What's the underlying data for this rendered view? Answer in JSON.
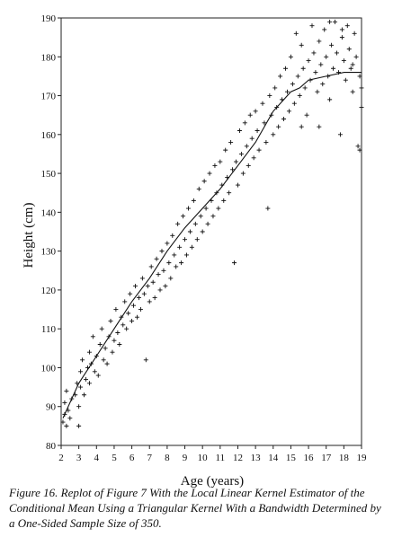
{
  "chart_data": {
    "type": "scatter",
    "title": "",
    "xlabel": "Age (years)",
    "ylabel": "Height (cm)",
    "xlim": [
      2,
      19
    ],
    "ylim": [
      80,
      190
    ],
    "x_ticks": [
      "2",
      "3",
      "4",
      "5",
      "6",
      "7",
      "8",
      "9",
      "10",
      "11",
      "12",
      "13",
      "14",
      "15",
      "16",
      "17",
      "18",
      "19"
    ],
    "y_ticks": [
      "80",
      "90",
      "100",
      "110",
      "120",
      "130",
      "140",
      "150",
      "160",
      "170",
      "180",
      "190"
    ],
    "grid": false,
    "legend": "none",
    "marker": "+",
    "series": [
      {
        "kind": "points",
        "points": [
          [
            2.1,
            86
          ],
          [
            2.2,
            88
          ],
          [
            2.2,
            91
          ],
          [
            2.3,
            85
          ],
          [
            2.3,
            94
          ],
          [
            2.4,
            89
          ],
          [
            2.5,
            87
          ],
          [
            2.6,
            92
          ],
          [
            2.8,
            93
          ],
          [
            2.9,
            96
          ],
          [
            3.0,
            85
          ],
          [
            3.0,
            90
          ],
          [
            3.1,
            95
          ],
          [
            3.1,
            99
          ],
          [
            3.2,
            102
          ],
          [
            3.3,
            93
          ],
          [
            3.4,
            97
          ],
          [
            3.5,
            100
          ],
          [
            3.6,
            104
          ],
          [
            3.6,
            96
          ],
          [
            3.7,
            101
          ],
          [
            3.8,
            108
          ],
          [
            3.9,
            99
          ],
          [
            4.0,
            103
          ],
          [
            4.1,
            98
          ],
          [
            4.2,
            106
          ],
          [
            4.3,
            110
          ],
          [
            4.4,
            102
          ],
          [
            4.5,
            105
          ],
          [
            4.6,
            101
          ],
          [
            4.7,
            108
          ],
          [
            4.8,
            112
          ],
          [
            4.9,
            104
          ],
          [
            5.0,
            107
          ],
          [
            5.1,
            115
          ],
          [
            5.2,
            109
          ],
          [
            5.3,
            106
          ],
          [
            5.4,
            113
          ],
          [
            5.5,
            111
          ],
          [
            5.6,
            117
          ],
          [
            5.7,
            110
          ],
          [
            5.8,
            114
          ],
          [
            5.9,
            119
          ],
          [
            6.0,
            112
          ],
          [
            6.1,
            116
          ],
          [
            6.2,
            121
          ],
          [
            6.3,
            113
          ],
          [
            6.4,
            118
          ],
          [
            6.5,
            115
          ],
          [
            6.6,
            123
          ],
          [
            6.7,
            119
          ],
          [
            6.8,
            102
          ],
          [
            6.9,
            121
          ],
          [
            7.0,
            117
          ],
          [
            7.1,
            126
          ],
          [
            7.2,
            122
          ],
          [
            7.3,
            118
          ],
          [
            7.4,
            128
          ],
          [
            7.5,
            124
          ],
          [
            7.6,
            120
          ],
          [
            7.7,
            130
          ],
          [
            7.8,
            125
          ],
          [
            7.9,
            121
          ],
          [
            8.0,
            132
          ],
          [
            8.1,
            127
          ],
          [
            8.2,
            123
          ],
          [
            8.3,
            134
          ],
          [
            8.4,
            129
          ],
          [
            8.5,
            126
          ],
          [
            8.6,
            137
          ],
          [
            8.7,
            131
          ],
          [
            8.8,
            127
          ],
          [
            8.9,
            139
          ],
          [
            9.0,
            133
          ],
          [
            9.1,
            129
          ],
          [
            9.2,
            141
          ],
          [
            9.3,
            135
          ],
          [
            9.4,
            131
          ],
          [
            9.5,
            143
          ],
          [
            9.6,
            137
          ],
          [
            9.7,
            133
          ],
          [
            9.8,
            146
          ],
          [
            9.9,
            139
          ],
          [
            10.0,
            135
          ],
          [
            10.1,
            148
          ],
          [
            10.2,
            141
          ],
          [
            10.3,
            137
          ],
          [
            10.4,
            150
          ],
          [
            10.5,
            143
          ],
          [
            10.6,
            139
          ],
          [
            10.7,
            152
          ],
          [
            10.8,
            145
          ],
          [
            10.9,
            141
          ],
          [
            11.0,
            153
          ],
          [
            11.1,
            147
          ],
          [
            11.2,
            143
          ],
          [
            11.3,
            156
          ],
          [
            11.4,
            149
          ],
          [
            11.5,
            145
          ],
          [
            11.6,
            158
          ],
          [
            11.7,
            151
          ],
          [
            11.8,
            127
          ],
          [
            11.9,
            153
          ],
          [
            12.0,
            147
          ],
          [
            12.1,
            161
          ],
          [
            12.2,
            155
          ],
          [
            12.3,
            150
          ],
          [
            12.4,
            163
          ],
          [
            12.5,
            157
          ],
          [
            12.6,
            152
          ],
          [
            12.7,
            165
          ],
          [
            12.8,
            159
          ],
          [
            12.9,
            154
          ],
          [
            13.0,
            166
          ],
          [
            13.1,
            161
          ],
          [
            13.2,
            156
          ],
          [
            13.4,
            168
          ],
          [
            13.5,
            163
          ],
          [
            13.6,
            158
          ],
          [
            13.7,
            141
          ],
          [
            13.8,
            170
          ],
          [
            13.9,
            165
          ],
          [
            14.0,
            160
          ],
          [
            14.1,
            172
          ],
          [
            14.2,
            167
          ],
          [
            14.3,
            162
          ],
          [
            14.4,
            175
          ],
          [
            14.5,
            169
          ],
          [
            14.6,
            164
          ],
          [
            14.7,
            177
          ],
          [
            14.8,
            171
          ],
          [
            14.9,
            166
          ],
          [
            15.0,
            180
          ],
          [
            15.1,
            173
          ],
          [
            15.2,
            168
          ],
          [
            15.3,
            186
          ],
          [
            15.4,
            175
          ],
          [
            15.5,
            170
          ],
          [
            15.6,
            183
          ],
          [
            15.7,
            177
          ],
          [
            15.8,
            172
          ],
          [
            15.9,
            165
          ],
          [
            16.0,
            179
          ],
          [
            16.1,
            174
          ],
          [
            16.2,
            188
          ],
          [
            16.3,
            181
          ],
          [
            16.4,
            176
          ],
          [
            16.5,
            171
          ],
          [
            16.6,
            184
          ],
          [
            16.7,
            178
          ],
          [
            16.8,
            173
          ],
          [
            16.9,
            187
          ],
          [
            17.0,
            180
          ],
          [
            17.1,
            175
          ],
          [
            17.2,
            169
          ],
          [
            17.3,
            183
          ],
          [
            17.4,
            177
          ],
          [
            17.5,
            189
          ],
          [
            17.6,
            181
          ],
          [
            17.7,
            176
          ],
          [
            17.8,
            160
          ],
          [
            17.9,
            185
          ],
          [
            18.0,
            179
          ],
          [
            18.1,
            174
          ],
          [
            18.2,
            188
          ],
          [
            18.3,
            182
          ],
          [
            18.4,
            177
          ],
          [
            18.5,
            171
          ],
          [
            18.6,
            186
          ],
          [
            18.7,
            180
          ],
          [
            18.8,
            157
          ],
          [
            18.9,
            175
          ],
          [
            19.0,
            167
          ],
          [
            19.0,
            172
          ],
          [
            18.9,
            156
          ],
          [
            17.9,
            187
          ],
          [
            16.6,
            162
          ],
          [
            15.6,
            162
          ],
          [
            18.5,
            178
          ],
          [
            17.2,
            189
          ]
        ]
      },
      {
        "kind": "curve",
        "x": [
          2.1,
          3,
          4,
          5,
          6,
          7,
          8,
          9,
          10,
          11,
          12,
          13,
          14,
          15,
          15.5,
          16,
          17,
          18,
          19
        ],
        "y": [
          87,
          96,
          103,
          110,
          117,
          123,
          130,
          136,
          141,
          146,
          152,
          158,
          166,
          171,
          172,
          174,
          175,
          176,
          176
        ]
      }
    ]
  },
  "caption": {
    "text": "Figure 16.   Replot of Figure 7 With the Local Linear Kernel Estimator of the Conditional Mean Using a Triangular Kernel With a Bandwidth Determined by a One-Sided Sample Size of 350."
  }
}
